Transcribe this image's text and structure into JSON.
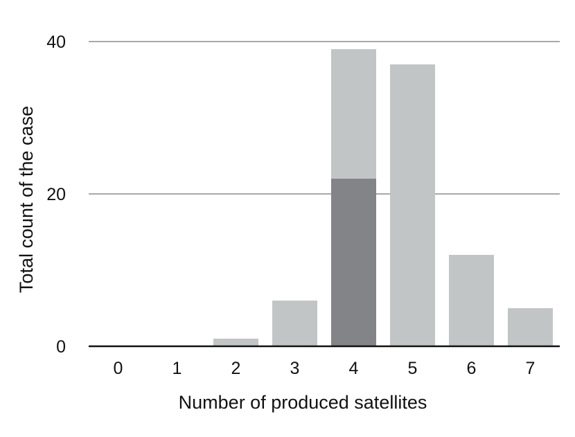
{
  "chart_data": {
    "type": "bar",
    "title": "",
    "xlabel": "Number of produced satellites",
    "ylabel": "Total count of the case",
    "categories": [
      "0",
      "1",
      "2",
      "3",
      "4",
      "5",
      "6",
      "7"
    ],
    "series": [
      {
        "values": [
          0,
          0,
          1,
          6,
          39,
          37,
          12,
          5
        ],
        "color": "#c2c5c5"
      },
      {
        "values": [
          0,
          0,
          0,
          0,
          22,
          0,
          0,
          0
        ],
        "color": "#838487"
      }
    ],
    "ylim": [
      0,
      40
    ],
    "yticks": [
      "0",
      "20",
      "40"
    ],
    "grid": true,
    "legend": "none"
  }
}
